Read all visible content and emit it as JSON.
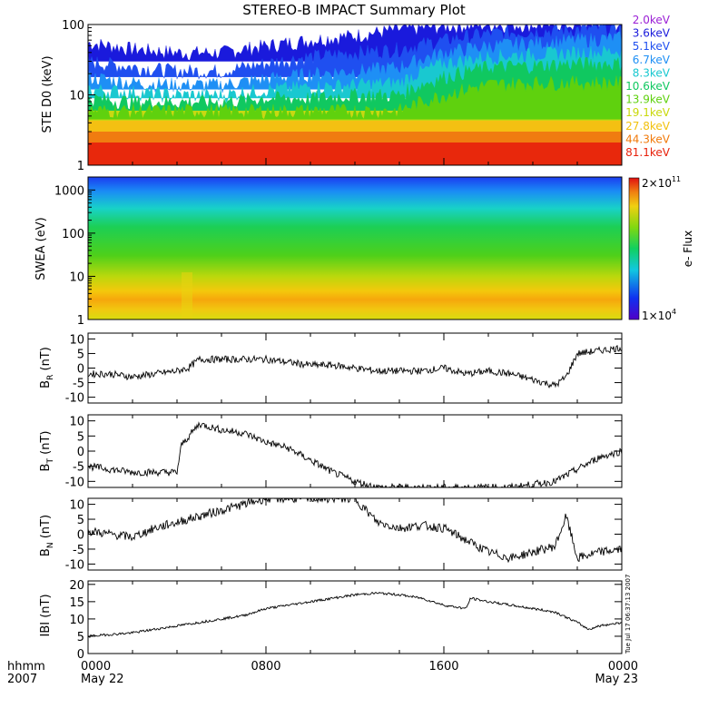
{
  "title": "STEREO-B IMPACT Summary Plot",
  "ste": {
    "ylabel": "STE D0 (keV)",
    "ticks": [
      "1",
      "10",
      "100"
    ],
    "legend": [
      {
        "label": "2.0keV",
        "color": "#9b1fd6"
      },
      {
        "label": "3.6keV",
        "color": "#1a1adc"
      },
      {
        "label": "5.1keV",
        "color": "#1f4ff0"
      },
      {
        "label": "6.7keV",
        "color": "#1e8ff5"
      },
      {
        "label": "8.3keV",
        "color": "#19c8d0"
      },
      {
        "label": "10.6keV",
        "color": "#10c860"
      },
      {
        "label": "13.9keV",
        "color": "#5fd10e"
      },
      {
        "label": "19.1keV",
        "color": "#c9d80a"
      },
      {
        "label": "27.8keV",
        "color": "#f2c10d"
      },
      {
        "label": "44.3keV",
        "color": "#f17a0a"
      },
      {
        "label": "81.1keV",
        "color": "#e8200a"
      }
    ]
  },
  "swea": {
    "ylabel": "SWEA (eV)",
    "ticks": [
      "1",
      "10",
      "100",
      "1000"
    ],
    "cbar_top": "2×10",
    "cbar_top_exp": "11",
    "cbar_bottom": "1×10",
    "cbar_bottom_exp": "4",
    "cbar_label": "e- Flux"
  },
  "br": {
    "ylabel": "B",
    "sub": "R",
    "unit": " (nT)",
    "ticks": [
      "-10",
      "-5",
      "0",
      "5",
      "10"
    ]
  },
  "bt": {
    "ylabel": "B",
    "sub": "T",
    "unit": " (nT)",
    "ticks": [
      "-10",
      "-5",
      "0",
      "5",
      "10"
    ]
  },
  "bn": {
    "ylabel": "B",
    "sub": "N",
    "unit": " (nT)",
    "ticks": [
      "-10",
      "-5",
      "0",
      "5",
      "10"
    ]
  },
  "bmag": {
    "ylabel": "IBI (nT)",
    "ticks": [
      "0",
      "5",
      "10",
      "15",
      "20"
    ]
  },
  "timestamp": "Tue Jul 17 06:37:13 2007",
  "xaxis": {
    "left_label_1": "hhmm",
    "left_label_2": "2007",
    "ticks": [
      {
        "hhmm": "0000",
        "date": "May 22"
      },
      {
        "hhmm": "0800",
        "date": ""
      },
      {
        "hhmm": "1600",
        "date": ""
      },
      {
        "hhmm": "0000",
        "date": "May 23"
      }
    ]
  },
  "chart_data": [
    {
      "type": "line",
      "title": "STEREO-B IMPACT Summary Plot",
      "ylabel": "STE D0 (keV)",
      "yscale": "log",
      "ylim": [
        1,
        100
      ],
      "x_hours": [
        0,
        2,
        4,
        6,
        8,
        10,
        12,
        14,
        16,
        18,
        20,
        22,
        24
      ],
      "series": [
        {
          "name": "2.0keV",
          "values": [
            100,
            100,
            100,
            100,
            100,
            100,
            100,
            100,
            100,
            100,
            100,
            100,
            100
          ]
        },
        {
          "name": "3.6keV",
          "values": [
            55,
            45,
            40,
            40,
            50,
            60,
            70,
            85,
            95,
            100,
            100,
            100,
            100
          ]
        },
        {
          "name": "5.1keV",
          "values": [
            30,
            25,
            22,
            22,
            28,
            35,
            40,
            45,
            60,
            75,
            80,
            85,
            90
          ]
        },
        {
          "name": "6.7keV",
          "values": [
            18,
            15,
            14,
            14,
            17,
            20,
            22,
            25,
            40,
            50,
            55,
            60,
            65
          ]
        },
        {
          "name": "8.3keV",
          "values": [
            12,
            11,
            10,
            10,
            12,
            13,
            14,
            15,
            28,
            35,
            38,
            40,
            42
          ]
        },
        {
          "name": "10.6keV",
          "values": [
            9,
            8,
            8,
            8,
            9,
            9,
            10,
            10,
            18,
            25,
            26,
            28,
            28
          ]
        },
        {
          "name": "13.9keV",
          "values": [
            6,
            6,
            6,
            6,
            6,
            6,
            6,
            6,
            10,
            14,
            15,
            15,
            15
          ]
        },
        {
          "name": "19.1keV",
          "values": [
            4.5,
            4.5,
            4.5,
            4.5,
            4.5,
            4.5,
            4.5,
            4.5,
            5.5,
            7,
            7.5,
            7.5,
            7.5
          ]
        },
        {
          "name": "27.8keV",
          "values": [
            3.2,
            3.2,
            3.2,
            3.2,
            3.2,
            3.2,
            3.2,
            3.2,
            3.4,
            3.8,
            3.8,
            3.8,
            3.8
          ]
        },
        {
          "name": "44.3keV",
          "values": [
            2.3,
            2.3,
            2.3,
            2.3,
            2.3,
            2.3,
            2.3,
            2.3,
            2.3,
            2.4,
            2.4,
            2.4,
            2.4
          ]
        },
        {
          "name": "81.1keV",
          "values": [
            1.6,
            1.6,
            1.6,
            1.6,
            1.6,
            1.6,
            1.6,
            1.6,
            1.6,
            1.6,
            1.6,
            1.6,
            1.6
          ]
        }
      ]
    },
    {
      "type": "heatmap",
      "ylabel": "SWEA (eV)",
      "yscale": "log",
      "ylim": [
        1,
        2000
      ],
      "zlabel": "e- Flux",
      "zlim": [
        "1×10^4",
        "2×10^11"
      ]
    },
    {
      "type": "line",
      "ylabel": "BR (nT)",
      "ylim": [
        -12,
        12
      ],
      "x_hours": [
        0,
        1,
        2,
        3,
        4,
        4.5,
        5,
        6,
        7,
        8,
        9,
        10,
        11,
        12,
        13,
        14,
        15,
        16,
        17,
        18,
        19,
        20,
        21,
        21.5,
        22,
        23,
        24
      ],
      "values": [
        -2,
        -2,
        -3,
        -2,
        -1,
        0,
        3,
        3,
        3,
        3,
        2,
        1,
        1,
        0,
        -1,
        -1,
        -1,
        0,
        -2,
        -1,
        -2,
        -4,
        -6,
        -3,
        5,
        6,
        7
      ]
    },
    {
      "type": "line",
      "ylabel": "BT (nT)",
      "ylim": [
        -12,
        12
      ],
      "x_hours": [
        0,
        1,
        2,
        3,
        4,
        4.2,
        5,
        6,
        7,
        8,
        9,
        10,
        11,
        12,
        13,
        14,
        16,
        18,
        19,
        20,
        21,
        22,
        23,
        24
      ],
      "values": [
        -5,
        -6,
        -7,
        -7,
        -7,
        2,
        9,
        7,
        6,
        3,
        1,
        -3,
        -7,
        -10,
        -12,
        -12,
        -12,
        -12,
        -12,
        -11,
        -10,
        -6,
        -2,
        0
      ]
    },
    {
      "type": "line",
      "ylabel": "BN (nT)",
      "ylim": [
        -12,
        12
      ],
      "x_hours": [
        0,
        1,
        2,
        3,
        4,
        5,
        6,
        7,
        8,
        9,
        10,
        11,
        12,
        13,
        14,
        15,
        16,
        17,
        18,
        19,
        20,
        21,
        21.5,
        22,
        23,
        24
      ],
      "values": [
        1,
        0,
        -1,
        2,
        4,
        6,
        8,
        10,
        12,
        12,
        12,
        12,
        12,
        4,
        2,
        3,
        2,
        -2,
        -6,
        -8,
        -6,
        -4,
        6,
        -8,
        -6,
        -5
      ]
    },
    {
      "type": "line",
      "ylabel": "IBI (nT)",
      "ylim": [
        0,
        20
      ],
      "x_hours": [
        0,
        1,
        2,
        3,
        4,
        5,
        6,
        7,
        8,
        9,
        10,
        11,
        12,
        13,
        14,
        15,
        16,
        17,
        17.2,
        18,
        19,
        20,
        21,
        22,
        22.5,
        23,
        24
      ],
      "values": [
        5,
        5.5,
        6,
        7,
        8,
        9,
        10,
        11,
        13,
        14,
        15,
        16,
        17,
        17.5,
        17,
        16,
        14,
        13,
        16,
        15,
        14,
        13,
        12,
        9,
        7,
        8,
        9
      ]
    }
  ]
}
